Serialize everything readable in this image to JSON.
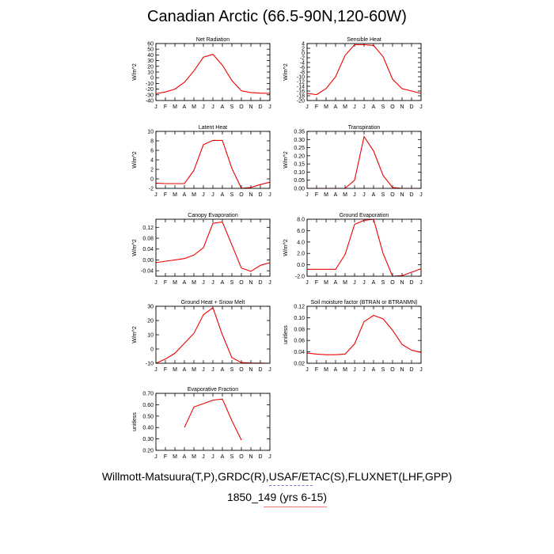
{
  "title": "Canadian Arctic (66.5-90N,120-60W)",
  "footer": {
    "line1": "Willmott-Matsuura(T,P),GRDC(R),USAF/ETAC(S),FLUXNET(LHF,GPP)",
    "line2": "1850_149 (yrs 6-15)"
  },
  "colors": {
    "series": "#ee0000",
    "axis": "#000000"
  },
  "chart_data": [
    {
      "type": "line",
      "title": "Net Radiation",
      "ylabel": "W/m^2",
      "categories": [
        "J",
        "F",
        "M",
        "A",
        "M",
        "J",
        "J",
        "A",
        "S",
        "O",
        "N",
        "D",
        "J"
      ],
      "ylim": [
        -40,
        60
      ],
      "yticks": [
        -40,
        -30,
        -20,
        -10,
        0,
        10,
        20,
        30,
        40,
        50,
        60
      ],
      "ytick_labels": [
        "-40",
        "-30",
        "-20",
        "-10",
        "0",
        "10",
        "20",
        "30",
        "40",
        "50",
        "60"
      ],
      "values": [
        -28,
        -25,
        -20,
        -8,
        12,
        36,
        41,
        22,
        -5,
        -23,
        -26,
        -27,
        -27.5
      ]
    },
    {
      "type": "line",
      "title": "Sensible Heat",
      "ylabel": "W/m^2",
      "categories": [
        "J",
        "F",
        "M",
        "A",
        "M",
        "J",
        "J",
        "A",
        "S",
        "O",
        "N",
        "D",
        "J"
      ],
      "ylim": [
        -20,
        4
      ],
      "yticks": [
        -20,
        -18,
        -16,
        -14,
        -12,
        -10,
        -8,
        -6,
        -4,
        -2,
        0,
        2,
        4
      ],
      "ytick_labels": [
        "-20",
        "-18",
        "-16",
        "-14",
        "-12",
        "-10",
        "-8",
        "-6",
        "-4",
        "-2",
        "0",
        "2",
        "4"
      ],
      "values": [
        -17,
        -17.5,
        -15,
        -10,
        -1,
        3.5,
        3.5,
        3.2,
        -1.5,
        -11,
        -15,
        -16,
        -17
      ]
    },
    {
      "type": "line",
      "title": "Latent Heat",
      "ylabel": "W/m^2",
      "categories": [
        "J",
        "F",
        "M",
        "A",
        "M",
        "J",
        "J",
        "A",
        "S",
        "O",
        "N",
        "D",
        "J"
      ],
      "ylim": [
        -2,
        10
      ],
      "yticks": [
        -2,
        0,
        2,
        4,
        6,
        8,
        10
      ],
      "ytick_labels": [
        "-2",
        "0",
        "2",
        "4",
        "6",
        "8",
        "10"
      ],
      "values": [
        -0.9,
        -1,
        -1,
        -1,
        1.8,
        7.2,
        8.1,
        8.1,
        2.2,
        -2,
        -1.8,
        -1.2,
        -0.7
      ]
    },
    {
      "type": "line",
      "title": "Transpiration",
      "ylabel": "W/m^2",
      "categories": [
        "J",
        "F",
        "M",
        "A",
        "M",
        "J",
        "J",
        "A",
        "S",
        "O",
        "N",
        "D",
        "J"
      ],
      "ylim": [
        0,
        0.35
      ],
      "yticks": [
        0,
        0.05,
        0.1,
        0.15,
        0.2,
        0.25,
        0.3,
        0.35
      ],
      "ytick_labels": [
        "0.00",
        "0.05",
        "0.10",
        "0.15",
        "0.20",
        "0.25",
        "0.30",
        "0.35"
      ],
      "values": [
        0,
        0,
        0,
        0,
        0,
        0.05,
        0.318,
        0.23,
        0.08,
        0.005,
        0,
        0,
        0
      ]
    },
    {
      "type": "line",
      "title": "Canopy Evaporation",
      "ylabel": "W/m^2",
      "categories": [
        "J",
        "F",
        "M",
        "A",
        "M",
        "J",
        "J",
        "A",
        "S",
        "O",
        "N",
        "D",
        "J"
      ],
      "ylim": [
        -0.06,
        0.15
      ],
      "yticks": [
        -0.04,
        0,
        0.04,
        0.08,
        0.12
      ],
      "ytick_labels": [
        "-0.04",
        "0.00",
        "0.04",
        "0.08",
        "0.12"
      ],
      "values": [
        -0.01,
        -0.005,
        0,
        0.005,
        0.018,
        0.045,
        0.135,
        0.14,
        0.055,
        -0.03,
        -0.042,
        -0.02,
        -0.01
      ]
    },
    {
      "type": "line",
      "title": "Ground Evaporation",
      "ylabel": "W/m^2",
      "categories": [
        "J",
        "F",
        "M",
        "A",
        "M",
        "J",
        "J",
        "A",
        "S",
        "O",
        "N",
        "D",
        "J"
      ],
      "ylim": [
        -2,
        8
      ],
      "yticks": [
        -2,
        0,
        2,
        4,
        6,
        8
      ],
      "ytick_labels": [
        "-2.0",
        "0.0",
        "2.0",
        "4.0",
        "6.0",
        "8.0"
      ],
      "values": [
        -0.8,
        -0.8,
        -0.8,
        -0.8,
        1.8,
        7.1,
        7.8,
        8.0,
        2.0,
        -2.0,
        -1.9,
        -1.3,
        -0.7
      ]
    },
    {
      "type": "line",
      "title": "Ground Heat + Snow Melt",
      "ylabel": "W/m^2",
      "categories": [
        "J",
        "F",
        "M",
        "A",
        "M",
        "J",
        "J",
        "A",
        "S",
        "O",
        "N",
        "D",
        "J"
      ],
      "ylim": [
        -10,
        30
      ],
      "yticks": [
        -10,
        0,
        10,
        20,
        30
      ],
      "ytick_labels": [
        "-10",
        "0",
        "10",
        "20",
        "30"
      ],
      "values": [
        -10,
        -7,
        -3,
        4,
        11,
        24,
        29,
        10,
        -6,
        -9.5,
        -9.8,
        -9.9,
        -10
      ]
    },
    {
      "type": "line",
      "title": "Soil moisture factor (BTRAN or BTRANMN)",
      "ylabel": "unitless",
      "categories": [
        "J",
        "F",
        "M",
        "A",
        "M",
        "J",
        "J",
        "A",
        "S",
        "O",
        "N",
        "D",
        "J"
      ],
      "ylim": [
        0.02,
        0.12
      ],
      "yticks": [
        0.02,
        0.04,
        0.06,
        0.08,
        0.1,
        0.12
      ],
      "ytick_labels": [
        "0.02",
        "0.04",
        "0.06",
        "0.08",
        "0.10",
        "0.12"
      ],
      "values": [
        0.038,
        0.036,
        0.035,
        0.035,
        0.036,
        0.054,
        0.093,
        0.104,
        0.098,
        0.078,
        0.053,
        0.043,
        0.039
      ]
    },
    {
      "type": "line",
      "title": "Evaporative Fraction",
      "ylabel": "unitless",
      "categories": [
        "J",
        "F",
        "M",
        "A",
        "M",
        "J",
        "J",
        "A",
        "S",
        "O",
        "N",
        "D",
        "J"
      ],
      "ylim": [
        0.2,
        0.7
      ],
      "yticks": [
        0.2,
        0.3,
        0.4,
        0.5,
        0.6,
        0.7
      ],
      "ytick_labels": [
        "0.20",
        "0.30",
        "0.40",
        "0.50",
        "0.60",
        "0.70"
      ],
      "values": [
        null,
        null,
        null,
        0.4,
        0.58,
        0.61,
        0.64,
        0.65,
        0.46,
        0.29,
        null,
        null,
        null
      ]
    }
  ]
}
